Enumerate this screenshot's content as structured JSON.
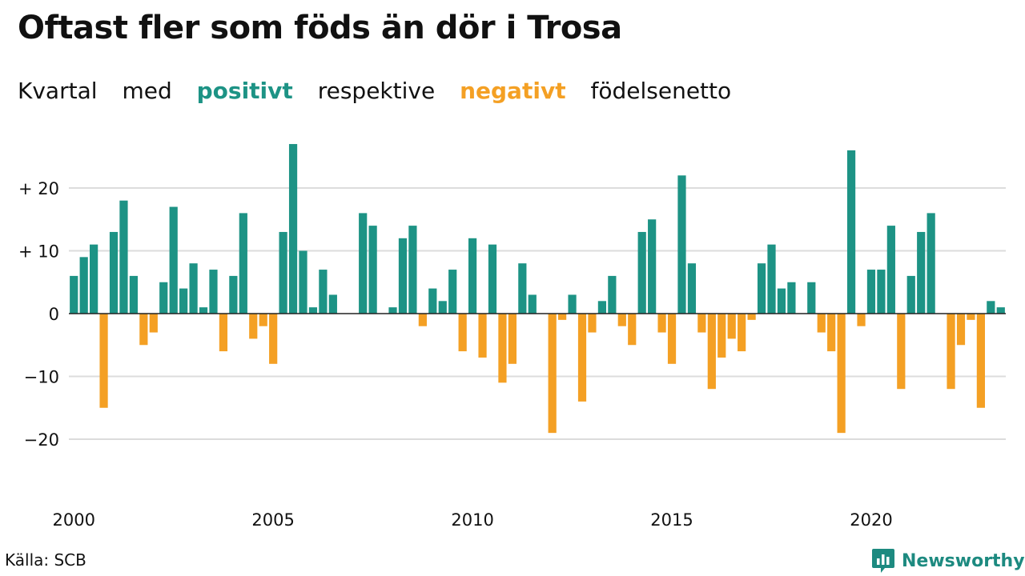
{
  "title": "Oftast fler som föds än dör i Trosa",
  "subtitle": {
    "part1": "Kvartal",
    "part2": "med",
    "positive": "positivt",
    "part3": "respektive",
    "negative": "negativt",
    "part4": "födelsenetto"
  },
  "source": "Källa: SCB",
  "brand": {
    "name": "Newsworthy",
    "icon": "newsworthy-logo-icon"
  },
  "colors": {
    "positive": "#1d9385",
    "negative": "#f4a024",
    "grid": "#dcdcdc",
    "axis": "#222222",
    "brand": "#1d8a80"
  },
  "chart_data": {
    "type": "bar",
    "period": "quarter",
    "start": "2000 Q1",
    "values": [
      6,
      9,
      11,
      -15,
      13,
      18,
      6,
      -5,
      -3,
      5,
      17,
      4,
      8,
      1,
      7,
      -6,
      6,
      16,
      -4,
      -2,
      -8,
      13,
      27,
      10,
      1,
      7,
      3,
      0,
      0,
      16,
      14,
      0,
      1,
      12,
      14,
      -2,
      4,
      2,
      7,
      -6,
      12,
      -7,
      11,
      -11,
      -8,
      8,
      3,
      0,
      -19,
      -1,
      3,
      -14,
      -3,
      2,
      6,
      -2,
      -5,
      13,
      15,
      -3,
      -8,
      22,
      8,
      -3,
      -12,
      -7,
      -4,
      -6,
      -1,
      8,
      11,
      4,
      5,
      0,
      5,
      -3,
      -6,
      -19,
      26,
      -2,
      7,
      7,
      14,
      -12,
      6,
      13,
      16,
      0,
      -12,
      -5,
      -1,
      -15,
      2,
      1
    ],
    "x_tick_labels": [
      "2000",
      "2005",
      "2010",
      "2015",
      "2020"
    ],
    "x_tick_years": [
      2000,
      2005,
      2010,
      2015,
      2020
    ],
    "y_ticks": [
      20,
      10,
      0,
      -10,
      -20
    ],
    "y_tick_labels": [
      "+ 20",
      "+ 10",
      "0",
      "−10",
      "−20"
    ],
    "ylim": [
      -28,
      28
    ],
    "grid": true
  }
}
